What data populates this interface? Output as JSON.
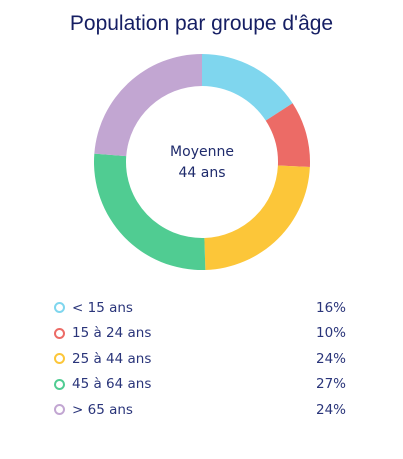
{
  "chart_data": {
    "type": "pie",
    "variant": "donut",
    "title": "Population par groupe d'âge",
    "center_label": "Moyenne",
    "center_value": "44 ans",
    "categories": [
      "< 15 ans",
      "15 à 24 ans",
      "25 à 44 ans",
      "45 à 64 ans",
      "> 65 ans"
    ],
    "values": [
      16,
      10,
      24,
      27,
      24
    ],
    "value_labels": [
      "16%",
      "10%",
      "24%",
      "27%",
      "24%"
    ],
    "colors": [
      "#7fd6ee",
      "#ec6b66",
      "#fcc639",
      "#50cc92",
      "#c2a6d2"
    ],
    "legend_position": "bottom"
  }
}
